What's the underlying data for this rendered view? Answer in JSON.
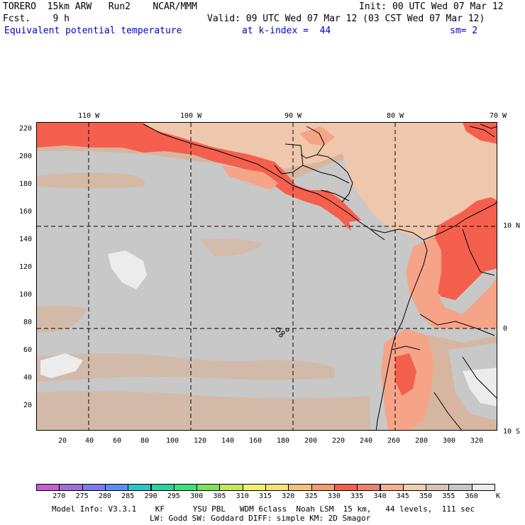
{
  "header": {
    "line1_left": "TORERO  15km ARW   Run2    NCAR/MMM",
    "line1_right": "Init: 00 UTC Wed 07 Mar 12",
    "line2_left": "Fcst.    9 h",
    "line2_right": "Valid: 09 UTC Wed 07 Mar 12 (03 CST Wed 07 Mar 12)",
    "line3_field": "Equivalent potential temperature",
    "line3_level": "at k-index =  44",
    "line3_smooth": "sm= 2"
  },
  "map": {
    "lon_labels": [
      "110 W",
      "100 W",
      "90 W",
      "80 W",
      "70 W"
    ],
    "lat_labels": [
      "10 N",
      "0",
      "10 S"
    ],
    "y_ticks": [
      "220",
      "200",
      "180",
      "160",
      "140",
      "120",
      "100",
      "80",
      "60",
      "40",
      "20"
    ],
    "x_ticks": [
      "20",
      "40",
      "60",
      "80",
      "100",
      "120",
      "140",
      "160",
      "180",
      "200",
      "220",
      "240",
      "260",
      "280",
      "300",
      "320"
    ],
    "colors": {
      "gray_ocean": "#c8c8c8",
      "tan": "#d6b6a0",
      "peach": "#efc7ac",
      "salmon": "#f6a487",
      "red": "#f4604d",
      "light": "#ececec"
    }
  },
  "colorbar": {
    "labels": [
      "270",
      "275",
      "280",
      "285",
      "290",
      "295",
      "300",
      "305",
      "310",
      "315",
      "320",
      "325",
      "330",
      "335",
      "340",
      "345",
      "350",
      "355",
      "360"
    ],
    "unit": "K",
    "colors": [
      "#c75fd0",
      "#a070d8",
      "#7c7cee",
      "#5a8ef5",
      "#2ec4c8",
      "#2fd39a",
      "#3ee07a",
      "#7de05c",
      "#bfe85a",
      "#f0f06e",
      "#f9e07a",
      "#f8c07a",
      "#f49c6c",
      "#f4604d",
      "#f08070",
      "#f4b090",
      "#f2ccb4",
      "#d9c4b4",
      "#c8c8c8",
      "#ececec"
    ]
  },
  "footer": {
    "line1": "Model Info: V3.3.1    KF      YSU PBL   WDM 6class  Noah LSM  15 km,   44 levels,  111 sec",
    "line2": "LW: Godd SW: Goddard DIFF: simple KM: 2D Smagor"
  }
}
